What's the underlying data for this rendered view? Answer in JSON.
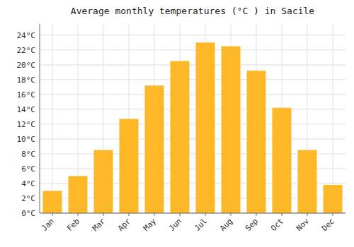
{
  "chart_data": {
    "type": "bar",
    "title": "Average monthly temperatures (°C ) in Sacile",
    "categories": [
      "Jan",
      "Feb",
      "Mar",
      "Apr",
      "May",
      "Jun",
      "Jul",
      "Aug",
      "Sep",
      "Oct",
      "Nov",
      "Dec"
    ],
    "values": [
      3.0,
      5.0,
      8.5,
      12.7,
      17.2,
      20.5,
      23.0,
      22.5,
      19.2,
      14.2,
      8.5,
      3.8
    ],
    "color": "#FDB827",
    "ylim": [
      0,
      25.5
    ],
    "yticks": [
      {
        "value": 0,
        "label": "0°C"
      },
      {
        "value": 2,
        "label": "2°C"
      },
      {
        "value": 4,
        "label": "4°C"
      },
      {
        "value": 6,
        "label": "6°C"
      },
      {
        "value": 8,
        "label": "8°C"
      },
      {
        "value": 10,
        "label": "10°C"
      },
      {
        "value": 12,
        "label": "12°C"
      },
      {
        "value": 14,
        "label": "14°C"
      },
      {
        "value": 16,
        "label": "16°C"
      },
      {
        "value": 18,
        "label": "18°C"
      },
      {
        "value": 20,
        "label": "20°C"
      },
      {
        "value": 22,
        "label": "22°C"
      },
      {
        "value": 24,
        "label": "24°C"
      }
    ],
    "grid": true
  }
}
